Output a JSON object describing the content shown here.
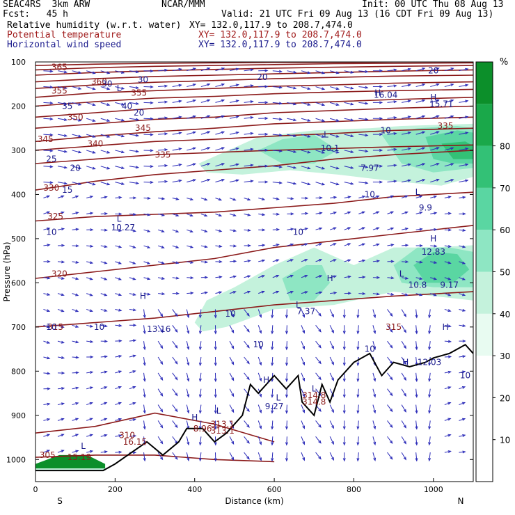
{
  "header": {
    "model": "SEAC4RS  3km ARW",
    "center": "NCAR/MMM",
    "init": "Init: 00 UTC Thu 08 Aug 13",
    "fcst": "Fcst:   45 h",
    "valid": "Valid: 21 UTC Fri 09 Aug 13 (16 CDT Fri 09 Aug 13)",
    "field1_name": "Relative humidity (w.r.t. water)",
    "field1_xy": "XY= 132.0,117.9 to 208.7,474.0",
    "field2_name": "Potential temperature",
    "field2_xy": "XY= 132.0,117.9 to 208.7,474.0",
    "field3_name": "Horizontal wind speed",
    "field3_xy": "XY= 132.0,117.9 to 208.7,474.0"
  },
  "colors": {
    "theta": "#8b1a1a",
    "wind": "#1a1a8c",
    "vectors": "#2a2ab8",
    "terrain": "#000000",
    "rh_scale": [
      "#ffffff",
      "#ffffff",
      "#ffffff",
      "#e8fbf1",
      "#c4f2dc",
      "#8ee6c3",
      "#5ad6a2",
      "#33c176",
      "#1aa84a",
      "#0c8f2a"
    ]
  },
  "chart_data": {
    "type": "heatmap",
    "xlabel": "Distance (km)",
    "ylabel": "Pressure (hPa)",
    "xlim": [
      0,
      1100
    ],
    "ylim": [
      1050,
      100
    ],
    "x_ticks": [
      0,
      200,
      400,
      600,
      800,
      1000
    ],
    "y_ticks": [
      100,
      200,
      300,
      400,
      500,
      600,
      700,
      800,
      900,
      1000
    ],
    "x_end_labels": {
      "left": "S",
      "right": "N"
    },
    "colorbar": {
      "unit": "%",
      "ticks": [
        10,
        20,
        30,
        40,
        50,
        60,
        70,
        80
      ],
      "range": [
        0,
        100
      ]
    },
    "rh_regions": [
      {
        "level": 40,
        "points": [
          [
            410,
            330
          ],
          [
            560,
            270
          ],
          [
            700,
            255
          ],
          [
            840,
            250
          ],
          [
            920,
            245
          ],
          [
            1100,
            240
          ],
          [
            1100,
            360
          ],
          [
            1020,
            380
          ],
          [
            900,
            370
          ],
          [
            760,
            355
          ],
          [
            640,
            345
          ],
          [
            520,
            355
          ],
          [
            430,
            350
          ]
        ]
      },
      {
        "level": 50,
        "points": [
          [
            560,
            300
          ],
          [
            620,
            275
          ],
          [
            700,
            265
          ],
          [
            760,
            300
          ],
          [
            700,
            330
          ],
          [
            620,
            330
          ]
        ]
      },
      {
        "level": 50,
        "points": [
          [
            870,
            265
          ],
          [
            960,
            250
          ],
          [
            1060,
            245
          ],
          [
            1100,
            250
          ],
          [
            1100,
            340
          ],
          [
            1000,
            350
          ],
          [
            920,
            330
          ]
        ]
      },
      {
        "level": 60,
        "points": [
          [
            980,
            270
          ],
          [
            1060,
            255
          ],
          [
            1100,
            260
          ],
          [
            1100,
            330
          ],
          [
            1050,
            330
          ],
          [
            1000,
            320
          ]
        ]
      },
      {
        "level": 70,
        "points": [
          [
            1020,
            285
          ],
          [
            1080,
            280
          ],
          [
            1100,
            290
          ],
          [
            1100,
            320
          ],
          [
            1050,
            320
          ]
        ]
      },
      {
        "level": 40,
        "points": [
          [
            400,
            690
          ],
          [
            430,
            640
          ],
          [
            500,
            610
          ],
          [
            600,
            560
          ],
          [
            700,
            520
          ],
          [
            800,
            560
          ],
          [
            900,
            520
          ],
          [
            1000,
            520
          ],
          [
            1100,
            515
          ],
          [
            1100,
            640
          ],
          [
            900,
            620
          ],
          [
            750,
            650
          ],
          [
            600,
            660
          ],
          [
            480,
            700
          ],
          [
            420,
            710
          ]
        ]
      },
      {
        "level": 50,
        "points": [
          [
            620,
            590
          ],
          [
            680,
            560
          ],
          [
            720,
            560
          ],
          [
            740,
            600
          ],
          [
            700,
            640
          ],
          [
            640,
            640
          ]
        ]
      },
      {
        "level": 50,
        "points": [
          [
            900,
            560
          ],
          [
            960,
            520
          ],
          [
            1040,
            520
          ],
          [
            1100,
            530
          ],
          [
            1100,
            610
          ],
          [
            1000,
            610
          ],
          [
            920,
            600
          ]
        ]
      },
      {
        "level": 60,
        "points": [
          [
            950,
            560
          ],
          [
            1000,
            530
          ],
          [
            1060,
            535
          ],
          [
            1090,
            570
          ],
          [
            1050,
            600
          ],
          [
            980,
            600
          ]
        ]
      },
      {
        "level": 90,
        "points": [
          [
            0,
            1010
          ],
          [
            60,
            990
          ],
          [
            130,
            990
          ],
          [
            175,
            1010
          ],
          [
            175,
            1020
          ],
          [
            0,
            1020
          ]
        ]
      },
      {
        "level": 40,
        "points": [
          [
            0,
            1020
          ],
          [
            175,
            1020
          ],
          [
            175,
            1025
          ],
          [
            0,
            1025
          ]
        ]
      }
    ],
    "terrain_surface": [
      [
        0,
        1025
      ],
      [
        170,
        1025
      ],
      [
        200,
        1010
      ],
      [
        240,
        985
      ],
      [
        280,
        960
      ],
      [
        320,
        990
      ],
      [
        360,
        960
      ],
      [
        380,
        930
      ],
      [
        420,
        930
      ],
      [
        450,
        960
      ],
      [
        480,
        940
      ],
      [
        520,
        900
      ],
      [
        540,
        830
      ],
      [
        560,
        850
      ],
      [
        600,
        810
      ],
      [
        630,
        840
      ],
      [
        660,
        810
      ],
      [
        670,
        870
      ],
      [
        700,
        900
      ],
      [
        720,
        830
      ],
      [
        740,
        870
      ],
      [
        760,
        820
      ],
      [
        780,
        800
      ],
      [
        800,
        780
      ],
      [
        840,
        760
      ],
      [
        870,
        810
      ],
      [
        900,
        780
      ],
      [
        940,
        790
      ],
      [
        980,
        780
      ],
      [
        1000,
        770
      ],
      [
        1040,
        760
      ],
      [
        1080,
        740
      ],
      [
        1100,
        760
      ]
    ],
    "theta_contours": [
      {
        "value": 305,
        "label_at": [
          30,
          990
        ]
      },
      {
        "value": 310,
        "label_at": [
          230,
          945
        ]
      },
      {
        "value": 313.1,
        "label_at": [
          470,
          935
        ]
      },
      {
        "value": 314.8,
        "label_at": [
          700,
          870
        ]
      },
      {
        "value": 315,
        "label_at": [
          50,
          700
        ]
      },
      {
        "value": 315,
        "label_at": [
          900,
          700
        ]
      },
      {
        "value": 320,
        "label_at": [
          60,
          580
        ]
      },
      {
        "value": 325,
        "label_at": [
          50,
          450
        ]
      },
      {
        "value": 330,
        "label_at": [
          40,
          385
        ]
      },
      {
        "value": 335,
        "label_at": [
          320,
          310
        ]
      },
      {
        "value": 335,
        "label_at": [
          1030,
          245
        ]
      },
      {
        "value": 340,
        "label_at": [
          150,
          285
        ]
      },
      {
        "value": 345,
        "label_at": [
          25,
          275
        ]
      },
      {
        "value": 345,
        "label_at": [
          270,
          250
        ]
      },
      {
        "value": 350,
        "label_at": [
          100,
          225
        ]
      },
      {
        "value": 355,
        "label_at": [
          60,
          165
        ]
      },
      {
        "value": 355,
        "label_at": [
          260,
          170
        ]
      },
      {
        "value": 360,
        "label_at": [
          160,
          145
        ]
      },
      {
        "value": 365,
        "label_at": [
          60,
          112
        ]
      }
    ],
    "theta_lines": [
      {
        "y": [
          995,
          990,
          990,
          1000,
          1005
        ]
      },
      {
        "y": [
          940,
          925,
          895,
          920,
          960
        ]
      },
      {
        "y": [
          700,
          690,
          680,
          665,
          650,
          640,
          630,
          620
        ]
      },
      {
        "y": [
          590,
          575,
          560,
          545,
          520,
          505,
          490,
          470
        ]
      },
      {
        "y": [
          460,
          450,
          445,
          440,
          430,
          420,
          405,
          395
        ]
      },
      {
        "y": [
          390,
          370,
          355,
          345,
          335,
          320,
          310,
          300
        ]
      },
      {
        "y": [
          330,
          320,
          310,
          305,
          300,
          296,
          292,
          288
        ]
      },
      {
        "y": [
          300,
          290,
          280,
          275,
          268,
          262,
          255,
          250
        ]
      },
      {
        "y": [
          280,
          268,
          258,
          250,
          240,
          235,
          230,
          225
        ]
      },
      {
        "y": [
          250,
          240,
          230,
          225,
          215,
          210,
          205,
          200
        ]
      },
      {
        "y": [
          225,
          215,
          205,
          200,
          195,
          190,
          185,
          180
        ]
      },
      {
        "y": [
          200,
          190,
          182,
          178,
          172,
          168,
          165,
          162
        ]
      },
      {
        "y": [
          180,
          170,
          165,
          160,
          155,
          152,
          148,
          145
        ]
      },
      {
        "y": [
          160,
          152,
          146,
          142,
          138,
          135,
          132,
          130
        ]
      },
      {
        "y": [
          145,
          138,
          133,
          130,
          127,
          124,
          121,
          118
        ]
      },
      {
        "y": [
          130,
          124,
          120,
          117,
          114,
          112,
          110,
          108
        ]
      },
      {
        "y": [
          118,
          113,
          110,
          108,
          106,
          104,
          103,
          102
        ]
      },
      {
        "y": [
          108,
          105,
          103,
          102,
          101,
          101,
          100,
          100
        ]
      }
    ],
    "theta_line_x": [
      0,
      150,
      300,
      450,
      600,
      750,
      900,
      1100
    ],
    "wind_labels": [
      {
        "text": "25",
        "at": [
          40,
          320
        ]
      },
      {
        "text": "20",
        "at": [
          100,
          340
        ]
      },
      {
        "text": "15",
        "at": [
          80,
          390
        ]
      },
      {
        "text": "10",
        "at": [
          40,
          485
        ]
      },
      {
        "text": "10",
        "at": [
          40,
          700
        ]
      },
      {
        "text": "10",
        "at": [
          160,
          700
        ]
      },
      {
        "text": "10",
        "at": [
          490,
          670
        ]
      },
      {
        "text": "10",
        "at": [
          560,
          740
        ]
      },
      {
        "text": "10",
        "at": [
          660,
          485
        ]
      },
      {
        "text": "10",
        "at": [
          840,
          750
        ]
      },
      {
        "text": "10",
        "at": [
          840,
          400
        ]
      },
      {
        "text": "10",
        "at": [
          880,
          255
        ]
      },
      {
        "text": "10",
        "at": [
          1080,
          810
        ]
      },
      {
        "text": "20",
        "at": [
          570,
          135
        ]
      },
      {
        "text": "35",
        "at": [
          80,
          200
        ]
      },
      {
        "text": "30",
        "at": [
          180,
          150
        ]
      },
      {
        "text": "30",
        "at": [
          270,
          140
        ]
      },
      {
        "text": "40",
        "at": [
          230,
          200
        ]
      },
      {
        "text": "20",
        "at": [
          260,
          215
        ]
      },
      {
        "text": "20",
        "at": [
          1000,
          120
        ]
      },
      {
        "text": "10.1",
        "at": [
          740,
          295
        ]
      },
      {
        "text": "7.97",
        "at": [
          840,
          340
        ]
      },
      {
        "text": "9.9",
        "at": [
          980,
          430
        ]
      },
      {
        "text": "10.27",
        "at": [
          220,
          475
        ]
      },
      {
        "text": "12.83",
        "at": [
          1000,
          530
        ]
      },
      {
        "text": "10.8",
        "at": [
          960,
          605
        ]
      },
      {
        "text": "9.17",
        "at": [
          1040,
          605
        ]
      },
      {
        "text": "7.37",
        "at": [
          680,
          665
        ]
      },
      {
        "text": "13.16",
        "at": [
          310,
          705
        ]
      },
      {
        "text": "12.03",
        "at": [
          990,
          780
        ]
      },
      {
        "text": "9.27",
        "at": [
          600,
          880
        ]
      },
      {
        "text": "16.04",
        "at": [
          880,
          175
        ]
      },
      {
        "text": "15.71",
        "at": [
          1020,
          195
        ]
      }
    ],
    "hl_markers": [
      {
        "text": "H",
        "at": [
          270,
          630
        ]
      },
      {
        "text": "H",
        "at": [
          580,
          820
        ]
      },
      {
        "text": "H",
        "at": [
          740,
          590
        ]
      },
      {
        "text": "H",
        "at": [
          1000,
          500
        ]
      },
      {
        "text": "H",
        "at": [
          930,
          780
        ]
      },
      {
        "text": "H",
        "at": [
          1030,
          700
        ]
      },
      {
        "text": "H",
        "at": [
          400,
          905
        ]
      },
      {
        "text": "H",
        "at": [
          860,
          170
        ]
      },
      {
        "text": "H",
        "at": [
          1000,
          180
        ]
      },
      {
        "text": "L",
        "at": [
          730,
          265
        ]
      },
      {
        "text": "L",
        "at": [
          960,
          395
        ]
      },
      {
        "text": "L",
        "at": [
          210,
          455
        ]
      },
      {
        "text": "L",
        "at": [
          920,
          580
        ]
      },
      {
        "text": "L",
        "at": [
          660,
          650
        ]
      },
      {
        "text": "L",
        "at": [
          610,
          860
        ]
      },
      {
        "text": "L",
        "at": [
          120,
          970
        ]
      },
      {
        "text": "L",
        "at": [
          460,
          890
        ]
      },
      {
        "text": "L",
        "at": [
          700,
          840
        ]
      },
      {
        "text": "L",
        "at": [
          210,
          160
        ]
      }
    ],
    "point_labels": [
      {
        "text": "313.1",
        "at": [
          470,
          920
        ]
      },
      {
        "text": "314.8",
        "at": [
          700,
          855
        ]
      },
      {
        "text": "8.96",
        "at": [
          420,
          930
        ]
      },
      {
        "text": "15.19",
        "at": [
          110,
          995
        ]
      },
      {
        "text": "16.15",
        "at": [
          250,
          960
        ]
      }
    ]
  }
}
